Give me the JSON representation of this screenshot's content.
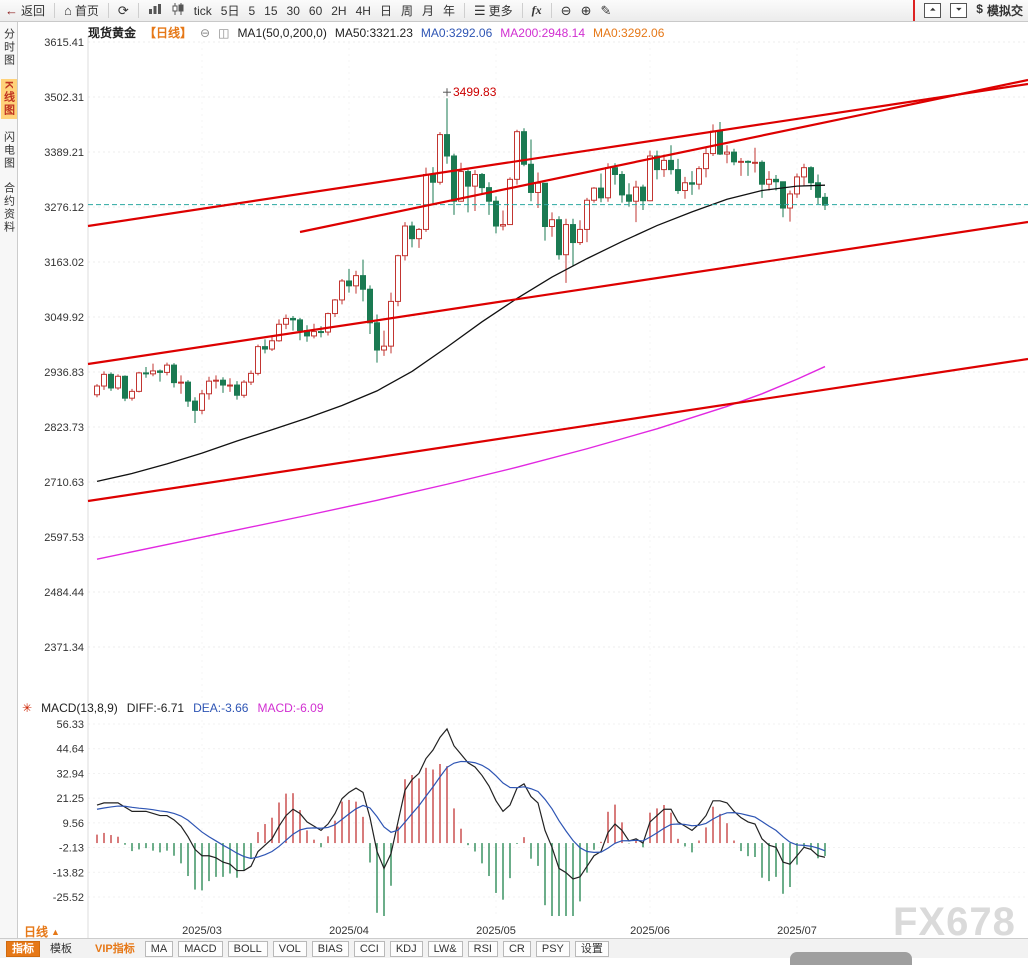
{
  "colors": {
    "up": "#c23531",
    "down": "#1a7a52",
    "ma50": "#111111",
    "ma200": "#e128e1",
    "trend": "#dd0000",
    "price_line": "#2aa8a0",
    "diff": "#222222",
    "dea": "#2e55b4",
    "hist_up": "#c84444",
    "hist_down": "#2e8b57",
    "accent": "#e67817",
    "peak": "#cc0000"
  },
  "icons": {
    "back": "←",
    "home": "⌂",
    "refresh": "⟳",
    "menu": "☰",
    "zoom_out": "⊖",
    "zoom_in": "⊕",
    "draw": "✎",
    "flag_up": "⏶",
    "flag_down": "⏷",
    "dollar": "$",
    "collapse": "⊖",
    "tag": "◫",
    "gear": "✳",
    "caret_up": "▲"
  },
  "toolbar": {
    "back": "返回",
    "home": "首页",
    "periods": [
      "tick",
      "5日",
      "5",
      "15",
      "30",
      "60",
      "2H",
      "4H",
      "日",
      "周",
      "月",
      "年"
    ],
    "more": "更多",
    "fx": "fx",
    "sim": "模拟交"
  },
  "sidebar": {
    "items": [
      {
        "label": "分时图"
      },
      {
        "label": "K线图"
      },
      {
        "label": "闪电图"
      },
      {
        "label": "合约资料"
      }
    ]
  },
  "header": {
    "symbol": "现货黄金",
    "period_tag": "【日线】",
    "ma_setting": "MA1(50,0,200,0)",
    "ma50": "MA50:3321.23",
    "ma0_blue": "MA0:3292.06",
    "ma200": "MA200:2948.14",
    "ma0_orange": "MA0:3292.06"
  },
  "bottom": {
    "period_label": "日线",
    "tabs": [
      "指标",
      "模板",
      "VIP指标",
      "MA",
      "MACD",
      "BOLL",
      "VOL",
      "BIAS",
      "CCI",
      "KDJ",
      "LW&",
      "RSI",
      "CR",
      "PSY",
      "设置"
    ]
  },
  "watermark": "FX678",
  "chart_data": {
    "type": "candlestick",
    "main": {
      "y_ticks": [
        3615.41,
        3502.31,
        3389.21,
        3276.12,
        3163.02,
        3049.92,
        2936.83,
        2823.73,
        2710.63,
        2597.53,
        2484.44,
        2371.34
      ],
      "x_labels": [
        {
          "label": "2025/03",
          "i": 15
        },
        {
          "label": "2025/04",
          "i": 36
        },
        {
          "label": "2025/05",
          "i": 57
        },
        {
          "label": "2025/06",
          "i": 79
        },
        {
          "label": "2025/07",
          "i": 100
        }
      ],
      "peak_label": "3499.83",
      "peak_index": 50,
      "last_price": 3281,
      "candles": [
        [
          2890,
          2912,
          2885,
          2908
        ],
        [
          2908,
          2938,
          2900,
          2932
        ],
        [
          2932,
          2936,
          2898,
          2904
        ],
        [
          2904,
          2932,
          2900,
          2928
        ],
        [
          2928,
          2930,
          2877,
          2883
        ],
        [
          2883,
          2902,
          2878,
          2897
        ],
        [
          2897,
          2937,
          2895,
          2935
        ],
        [
          2935,
          2947,
          2925,
          2933
        ],
        [
          2933,
          2954,
          2928,
          2939
        ],
        [
          2939,
          2942,
          2917,
          2936
        ],
        [
          2936,
          2956,
          2930,
          2951
        ],
        [
          2951,
          2955,
          2905,
          2915
        ],
        [
          2915,
          2930,
          2892,
          2916
        ],
        [
          2916,
          2920,
          2865,
          2877
        ],
        [
          2877,
          2885,
          2832,
          2858
        ],
        [
          2858,
          2900,
          2850,
          2892
        ],
        [
          2892,
          2927,
          2880,
          2918
        ],
        [
          2918,
          2930,
          2903,
          2920
        ],
        [
          2920,
          2926,
          2894,
          2910
        ],
        [
          2910,
          2924,
          2896,
          2910
        ],
        [
          2910,
          2918,
          2880,
          2889
        ],
        [
          2889,
          2920,
          2884,
          2916
        ],
        [
          2916,
          2940,
          2910,
          2934
        ],
        [
          2934,
          2993,
          2930,
          2989
        ],
        [
          2989,
          3004,
          2975,
          2984
        ],
        [
          2984,
          3010,
          2980,
          3001
        ],
        [
          3001,
          3045,
          2999,
          3035
        ],
        [
          3035,
          3055,
          3025,
          3047
        ],
        [
          3047,
          3052,
          3022,
          3044
        ],
        [
          3044,
          3048,
          3002,
          3022
        ],
        [
          3022,
          3033,
          2999,
          3011
        ],
        [
          3011,
          3036,
          3006,
          3020
        ],
        [
          3020,
          3031,
          3008,
          3019
        ],
        [
          3019,
          3059,
          3012,
          3057
        ],
        [
          3057,
          3087,
          3050,
          3085
        ],
        [
          3085,
          3128,
          3076,
          3124
        ],
        [
          3124,
          3149,
          3100,
          3114
        ],
        [
          3114,
          3145,
          3098,
          3135
        ],
        [
          3135,
          3168,
          3082,
          3107
        ],
        [
          3107,
          3115,
          3015,
          3038
        ],
        [
          3038,
          3055,
          2956,
          2982
        ],
        [
          2982,
          3022,
          2970,
          2990
        ],
        [
          2990,
          3100,
          2975,
          3082
        ],
        [
          3082,
          3178,
          3072,
          3176
        ],
        [
          3176,
          3245,
          3166,
          3237
        ],
        [
          3237,
          3246,
          3193,
          3211
        ],
        [
          3211,
          3233,
          3192,
          3230
        ],
        [
          3230,
          3357,
          3225,
          3343
        ],
        [
          3343,
          3358,
          3282,
          3327
        ],
        [
          3327,
          3430,
          3322,
          3425
        ],
        [
          3425,
          3499.83,
          3365,
          3381
        ],
        [
          3381,
          3386,
          3260,
          3288
        ],
        [
          3288,
          3367,
          3287,
          3349
        ],
        [
          3349,
          3355,
          3265,
          3319
        ],
        [
          3319,
          3352,
          3268,
          3343
        ],
        [
          3343,
          3346,
          3301,
          3316
        ],
        [
          3316,
          3327,
          3260,
          3288
        ],
        [
          3288,
          3298,
          3222,
          3237
        ],
        [
          3237,
          3269,
          3228,
          3240
        ],
        [
          3240,
          3337,
          3239,
          3333
        ],
        [
          3333,
          3435,
          3322,
          3431
        ],
        [
          3431,
          3438,
          3360,
          3364
        ],
        [
          3364,
          3415,
          3288,
          3306
        ],
        [
          3306,
          3347,
          3274,
          3325
        ],
        [
          3325,
          3325,
          3207,
          3236
        ],
        [
          3236,
          3265,
          3215,
          3250
        ],
        [
          3250,
          3257,
          3168,
          3178
        ],
        [
          3178,
          3252,
          3120,
          3240
        ],
        [
          3240,
          3252,
          3155,
          3203
        ],
        [
          3203,
          3249,
          3198,
          3230
        ],
        [
          3230,
          3295,
          3204,
          3290
        ],
        [
          3290,
          3317,
          3285,
          3315
        ],
        [
          3315,
          3345,
          3286,
          3295
        ],
        [
          3295,
          3366,
          3287,
          3357
        ],
        [
          3357,
          3366,
          3322,
          3343
        ],
        [
          3343,
          3350,
          3285,
          3301
        ],
        [
          3301,
          3325,
          3277,
          3288
        ],
        [
          3288,
          3330,
          3245,
          3317
        ],
        [
          3317,
          3322,
          3270,
          3289
        ],
        [
          3289,
          3392,
          3288,
          3381
        ],
        [
          3381,
          3392,
          3333,
          3353
        ],
        [
          3353,
          3384,
          3338,
          3372
        ],
        [
          3372,
          3403,
          3343,
          3353
        ],
        [
          3353,
          3375,
          3303,
          3310
        ],
        [
          3310,
          3338,
          3293,
          3326
        ],
        [
          3326,
          3350,
          3301,
          3323
        ],
        [
          3323,
          3360,
          3312,
          3355
        ],
        [
          3355,
          3399,
          3337,
          3386
        ],
        [
          3386,
          3446,
          3381,
          3432
        ],
        [
          3432,
          3451,
          3383,
          3385
        ],
        [
          3385,
          3403,
          3366,
          3389
        ],
        [
          3389,
          3396,
          3362,
          3369
        ],
        [
          3369,
          3377,
          3340,
          3370
        ],
        [
          3370,
          3372,
          3340,
          3368
        ],
        [
          3368,
          3398,
          3347,
          3368
        ],
        [
          3368,
          3372,
          3295,
          3323
        ],
        [
          3323,
          3350,
          3310,
          3333
        ],
        [
          3333,
          3342,
          3310,
          3328
        ],
        [
          3328,
          3328,
          3255,
          3274
        ],
        [
          3274,
          3310,
          3246,
          3303
        ],
        [
          3303,
          3345,
          3295,
          3338
        ],
        [
          3338,
          3365,
          3320,
          3357
        ],
        [
          3357,
          3360,
          3311,
          3326
        ],
        [
          3326,
          3343,
          3282,
          3296
        ],
        [
          3296,
          3305,
          3270,
          3280
        ]
      ],
      "ma50": [
        [
          0,
          2712
        ],
        [
          5,
          2728
        ],
        [
          10,
          2748
        ],
        [
          15,
          2770
        ],
        [
          20,
          2795
        ],
        [
          25,
          2818
        ],
        [
          30,
          2842
        ],
        [
          35,
          2868
        ],
        [
          40,
          2898
        ],
        [
          45,
          2938
        ],
        [
          50,
          2988
        ],
        [
          55,
          3040
        ],
        [
          60,
          3088
        ],
        [
          65,
          3132
        ],
        [
          70,
          3170
        ],
        [
          75,
          3205
        ],
        [
          80,
          3238
        ],
        [
          85,
          3266
        ],
        [
          90,
          3292
        ],
        [
          95,
          3310
        ],
        [
          100,
          3319
        ],
        [
          104,
          3321
        ]
      ],
      "ma200": [
        [
          0,
          2552
        ],
        [
          10,
          2582
        ],
        [
          20,
          2612
        ],
        [
          30,
          2642
        ],
        [
          40,
          2673
        ],
        [
          50,
          2706
        ],
        [
          60,
          2741
        ],
        [
          70,
          2779
        ],
        [
          80,
          2820
        ],
        [
          90,
          2866
        ],
        [
          95,
          2892
        ],
        [
          100,
          2922
        ],
        [
          104,
          2948
        ]
      ],
      "trendlines": [
        [
          88,
          226,
          1028,
          84
        ],
        [
          300,
          232,
          1028,
          80
        ],
        [
          88,
          364,
          1028,
          222
        ],
        [
          88,
          501,
          1028,
          359
        ]
      ]
    },
    "macd": {
      "title": "MACD(13,8,9)",
      "diff_label": "DIFF:-6.71",
      "dea_label": "DEA:-3.66",
      "macd_label": "MACD:-6.09",
      "y_ticks": [
        56.33,
        44.64,
        32.94,
        21.25,
        9.56,
        -2.13,
        -13.82,
        -25.52
      ],
      "diff": [
        18,
        19,
        19,
        19,
        17,
        15,
        15,
        15,
        14,
        13,
        13,
        11,
        8,
        3,
        -3,
        -6,
        -6,
        -7,
        -9,
        -10,
        -13,
        -13,
        -11,
        -4,
        -1,
        2,
        8,
        13,
        16,
        14,
        10,
        8,
        6,
        9,
        14,
        21,
        24,
        26,
        24,
        12,
        -4,
        -12,
        -5,
        10,
        25,
        30,
        33,
        40,
        44,
        50,
        54,
        46,
        42,
        38,
        36,
        32,
        27,
        20,
        15,
        18,
        26,
        28,
        22,
        19,
        6,
        -2,
        -12,
        -14,
        -17,
        -16,
        -11,
        -6,
        -4,
        5,
        9,
        6,
        1,
        2,
        0,
        10,
        13,
        16,
        16,
        10,
        8,
        6,
        9,
        13,
        20,
        20,
        19,
        15,
        12,
        10,
        9,
        2,
        -1,
        -2,
        -9,
        -10,
        -6,
        -2,
        -3,
        -6,
        -6.71
      ],
      "dea": [
        16,
        16.6,
        17.1,
        17.5,
        17.4,
        16.9,
        16.5,
        16.2,
        15.8,
        15.2,
        14.8,
        14,
        12.8,
        10.8,
        8,
        5.2,
        3,
        1,
        -1,
        -2.8,
        -4.8,
        -6.4,
        -7.3,
        -6.6,
        -5.5,
        -4,
        -1.6,
        1.3,
        4.2,
        6.2,
        7,
        7.2,
        7,
        7.4,
        8.7,
        11.2,
        13.8,
        16.2,
        17.8,
        16.6,
        12.5,
        7.6,
        5.1,
        6.1,
        9.9,
        13.9,
        17.7,
        22.2,
        26.6,
        31.3,
        35.8,
        37.8,
        38.6,
        38.5,
        38,
        36.8,
        34.8,
        31.8,
        28.4,
        26.3,
        26.2,
        26.6,
        25.7,
        24.4,
        20.7,
        16.2,
        10.6,
        5.7,
        1.2,
        -2.2,
        -4,
        -4.4,
        -4.3,
        -2.4,
        -0.1,
        1.1,
        1.1,
        1.3,
        1,
        2.8,
        4.8,
        7,
        8.8,
        9,
        8.8,
        8.2,
        8.4,
        9.3,
        11.4,
        13.1,
        14.3,
        14.4,
        13.9,
        13.1,
        12.3,
        10.2,
        8,
        6,
        3,
        0.4,
        -0.9,
        -1.1,
        -1.5,
        -2.4,
        -3.66
      ]
    }
  }
}
